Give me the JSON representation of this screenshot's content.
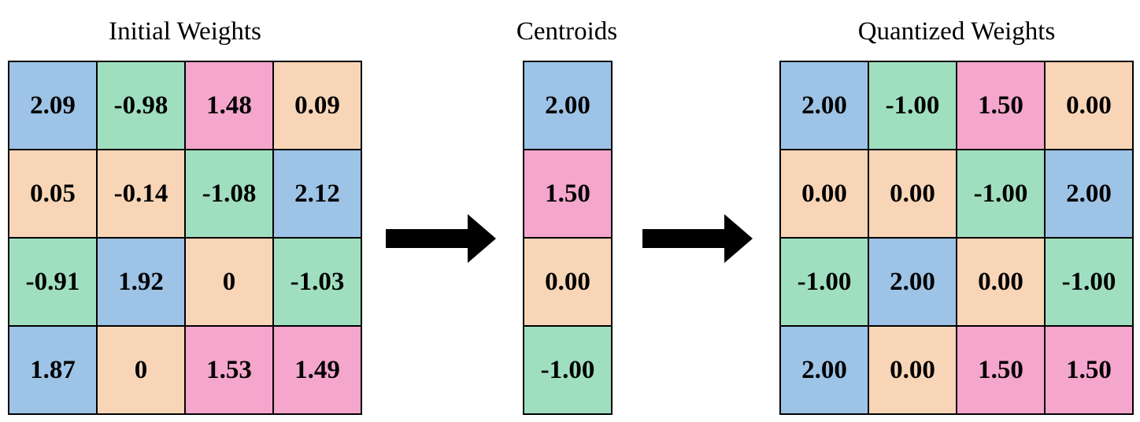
{
  "colors": {
    "blue": "#9dc3e6",
    "green": "#9fdfbf",
    "pink": "#f4a6cc",
    "peach": "#f8d5b6"
  },
  "initial": {
    "title": "Initial Weights",
    "rows": [
      [
        {
          "v": "2.09",
          "c": "blue"
        },
        {
          "v": "-0.98",
          "c": "green"
        },
        {
          "v": "1.48",
          "c": "pink"
        },
        {
          "v": "0.09",
          "c": "peach"
        }
      ],
      [
        {
          "v": "0.05",
          "c": "peach"
        },
        {
          "v": "-0.14",
          "c": "peach"
        },
        {
          "v": "-1.08",
          "c": "green"
        },
        {
          "v": "2.12",
          "c": "blue"
        }
      ],
      [
        {
          "v": "-0.91",
          "c": "green"
        },
        {
          "v": "1.92",
          "c": "blue"
        },
        {
          "v": "0",
          "c": "peach"
        },
        {
          "v": "-1.03",
          "c": "green"
        }
      ],
      [
        {
          "v": "1.87",
          "c": "blue"
        },
        {
          "v": "0",
          "c": "peach"
        },
        {
          "v": "1.53",
          "c": "pink"
        },
        {
          "v": "1.49",
          "c": "pink"
        }
      ]
    ]
  },
  "centroids": {
    "title": "Centroids",
    "rows": [
      [
        {
          "v": "2.00",
          "c": "blue"
        }
      ],
      [
        {
          "v": "1.50",
          "c": "pink"
        }
      ],
      [
        {
          "v": "0.00",
          "c": "peach"
        }
      ],
      [
        {
          "v": "-1.00",
          "c": "green"
        }
      ]
    ]
  },
  "quantized": {
    "title": "Quantized Weights",
    "rows": [
      [
        {
          "v": "2.00",
          "c": "blue"
        },
        {
          "v": "-1.00",
          "c": "green"
        },
        {
          "v": "1.50",
          "c": "pink"
        },
        {
          "v": "0.00",
          "c": "peach"
        }
      ],
      [
        {
          "v": "0.00",
          "c": "peach"
        },
        {
          "v": "0.00",
          "c": "peach"
        },
        {
          "v": "-1.00",
          "c": "green"
        },
        {
          "v": "2.00",
          "c": "blue"
        }
      ],
      [
        {
          "v": "-1.00",
          "c": "green"
        },
        {
          "v": "2.00",
          "c": "blue"
        },
        {
          "v": "0.00",
          "c": "peach"
        },
        {
          "v": "-1.00",
          "c": "green"
        }
      ],
      [
        {
          "v": "2.00",
          "c": "blue"
        },
        {
          "v": "0.00",
          "c": "peach"
        },
        {
          "v": "1.50",
          "c": "pink"
        },
        {
          "v": "1.50",
          "c": "pink"
        }
      ]
    ]
  },
  "arrows": [
    "right-arrow-icon",
    "right-arrow-icon"
  ]
}
